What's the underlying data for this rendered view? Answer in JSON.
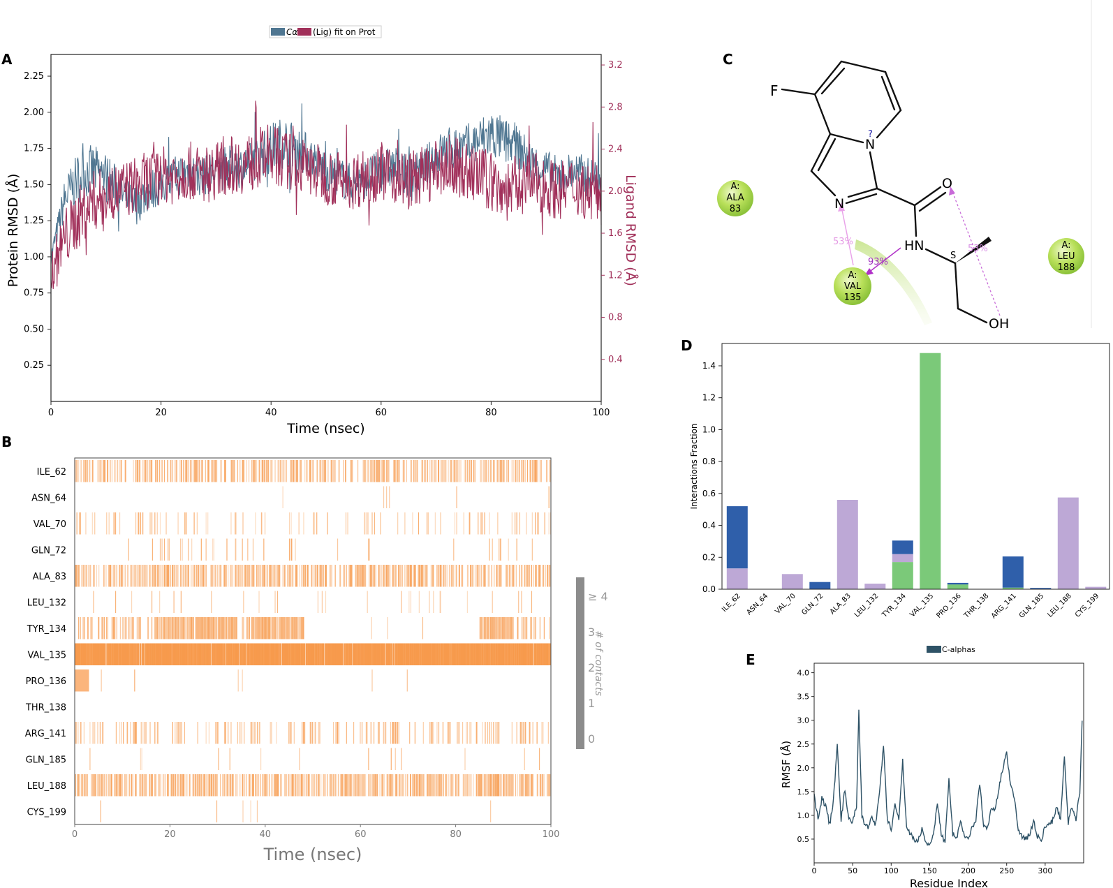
{
  "panels": {
    "A": "A",
    "B": "B",
    "C": "C",
    "D": "D",
    "E": "E"
  },
  "colors": {
    "protein": "#4f7691",
    "ligand": "#a1305a",
    "contact": "#f79a4c",
    "hbond": "#2f5faa",
    "hydrophobic": "#bda8d6",
    "water": "#7bc979",
    "rmsf": "#2e5266",
    "residue": "#a8d84a",
    "colorbar": "#8c8c8c"
  },
  "chart_data": [
    {
      "panel": "A",
      "type": "line",
      "legend": {
        "entries": [
          "Cα",
          "(Lig) fit on Prot"
        ],
        "placement": "top-center"
      },
      "xlabel": "Time (nsec)",
      "ylabel": "Protein RMSD (Å)",
      "y2label": "Ligand RMSD (Å)",
      "xlim": [
        0,
        100
      ],
      "ylim": [
        0,
        2.4
      ],
      "y2lim": [
        0,
        3.3
      ],
      "xticks": [
        0,
        20,
        40,
        60,
        80,
        100
      ],
      "yticks": [
        0.25,
        0.5,
        0.75,
        1.0,
        1.25,
        1.5,
        1.75,
        2.0,
        2.25
      ],
      "ytick_labels": [
        "0.25",
        "0.50",
        "0.75",
        "1.00",
        "1.25",
        "1.50",
        "1.75",
        "2.00",
        "2.25"
      ],
      "y2ticks": [
        0.4,
        0.8,
        1.2,
        1.6,
        2.0,
        2.4,
        2.8,
        3.2
      ],
      "y2tick_labels": [
        "0.4",
        "0.8",
        "1.2",
        "1.6",
        "2.0",
        "2.4",
        "2.8",
        "3.2"
      ],
      "series": [
        {
          "name": "Cα",
          "axis": "left",
          "x": [
            0,
            2.5,
            5,
            7.5,
            10,
            12.5,
            15,
            17.5,
            20,
            22.5,
            25,
            27.5,
            30,
            32.5,
            35,
            37.5,
            40,
            42.5,
            45,
            47.5,
            50,
            52.5,
            55,
            57.5,
            60,
            62.5,
            65,
            67.5,
            70,
            72.5,
            75,
            77.5,
            80,
            82.5,
            85,
            87.5,
            90,
            92.5,
            95,
            97.5,
            100
          ],
          "y": [
            1.0,
            1.4,
            1.55,
            1.6,
            1.55,
            1.45,
            1.35,
            1.45,
            1.5,
            1.55,
            1.6,
            1.55,
            1.6,
            1.62,
            1.62,
            1.68,
            1.75,
            1.8,
            1.75,
            1.68,
            1.6,
            1.55,
            1.5,
            1.55,
            1.6,
            1.62,
            1.55,
            1.6,
            1.7,
            1.75,
            1.75,
            1.8,
            1.85,
            1.8,
            1.75,
            1.65,
            1.6,
            1.55,
            1.6,
            1.55,
            1.55
          ],
          "spread": [
            0.05,
            0.15,
            0.18,
            0.18,
            0.18,
            0.15,
            0.15,
            0.15,
            0.14,
            0.15,
            0.15,
            0.14,
            0.15,
            0.15,
            0.15,
            0.15,
            0.18,
            0.18,
            0.16,
            0.15,
            0.15,
            0.14,
            0.14,
            0.14,
            0.15,
            0.15,
            0.14,
            0.15,
            0.15,
            0.16,
            0.16,
            0.16,
            0.18,
            0.16,
            0.15,
            0.14,
            0.14,
            0.14,
            0.14,
            0.14,
            0.14
          ]
        },
        {
          "name": "(Lig) fit on Prot",
          "axis": "right",
          "x": [
            0,
            2.5,
            5,
            7.5,
            10,
            12.5,
            15,
            17.5,
            20,
            22.5,
            25,
            27.5,
            30,
            32.5,
            35,
            37.5,
            40,
            42.5,
            45,
            47.5,
            50,
            52.5,
            55,
            57.5,
            60,
            62.5,
            65,
            67.5,
            70,
            72.5,
            75,
            77.5,
            80,
            82.5,
            85,
            87.5,
            90,
            92.5,
            95,
            97.5,
            100
          ],
          "y": [
            1.2,
            1.55,
            1.75,
            1.9,
            1.95,
            2.0,
            2.05,
            2.1,
            2.15,
            2.15,
            2.2,
            2.15,
            2.2,
            2.25,
            2.25,
            2.3,
            2.35,
            2.3,
            2.25,
            2.2,
            2.15,
            2.1,
            2.1,
            2.15,
            2.2,
            2.15,
            2.1,
            2.15,
            2.2,
            2.25,
            2.2,
            2.15,
            2.1,
            2.0,
            2.05,
            2.1,
            2.05,
            2.0,
            2.05,
            2.0,
            1.95
          ],
          "spread": [
            0.25,
            0.3,
            0.3,
            0.3,
            0.3,
            0.28,
            0.28,
            0.28,
            0.28,
            0.28,
            0.28,
            0.28,
            0.28,
            0.28,
            0.28,
            0.3,
            0.3,
            0.28,
            0.28,
            0.28,
            0.28,
            0.28,
            0.28,
            0.28,
            0.28,
            0.28,
            0.28,
            0.28,
            0.28,
            0.3,
            0.28,
            0.28,
            0.3,
            0.3,
            0.3,
            0.28,
            0.28,
            0.28,
            0.28,
            0.28,
            0.28
          ]
        }
      ]
    },
    {
      "panel": "B",
      "type": "heatmap",
      "xlabel": "Time (nsec)",
      "xlim": [
        0,
        100
      ],
      "xticks": [
        0,
        20,
        40,
        60,
        80,
        100
      ],
      "colorbar_label": "# of contacts",
      "colorbar_ticks": [
        "≥ 4",
        "3",
        "2",
        "1",
        "0"
      ],
      "rows": [
        {
          "residue": "ILE_62",
          "density": 0.45,
          "shade": 0.35,
          "gaps": []
        },
        {
          "residue": "ASN_64",
          "density": 0.004,
          "shade": 0.3,
          "gaps": [],
          "events": [
            64.8,
            65.4,
            66.0
          ]
        },
        {
          "residue": "VAL_70",
          "density": 0.1,
          "shade": 0.3,
          "gaps": []
        },
        {
          "residue": "GLN_72",
          "density": 0.08,
          "shade": 0.3,
          "gaps": [
            [
              0,
              17
            ],
            [
              48,
              86
            ]
          ]
        },
        {
          "residue": "ALA_83",
          "density": 0.5,
          "shade": 0.35,
          "gaps": []
        },
        {
          "residue": "LEU_132",
          "density": 0.04,
          "shade": 0.3,
          "gaps": []
        },
        {
          "residue": "TYR_134",
          "density": 0.3,
          "shade": 0.35,
          "gaps": [
            [
              45,
              85
            ]
          ],
          "dense": [
            [
              17,
              34
            ],
            [
              37,
              48
            ],
            [
              85,
              92
            ]
          ]
        },
        {
          "residue": "VAL_135",
          "density": 0.98,
          "shade": 0.85,
          "gaps": []
        },
        {
          "residue": "PRO_136",
          "density": 0.01,
          "shade": 0.3,
          "gaps": [],
          "block": [
            0,
            3
          ]
        },
        {
          "residue": "THR_138",
          "density": 0.01,
          "shade": 0.3,
          "gaps": [
            [
              12,
              100
            ]
          ]
        },
        {
          "residue": "ARG_141",
          "density": 0.22,
          "shade": 0.35,
          "gaps": []
        },
        {
          "residue": "GLN_185",
          "density": 0.01,
          "shade": 0.3,
          "gaps": []
        },
        {
          "residue": "LEU_188",
          "density": 0.55,
          "shade": 0.35,
          "gaps": []
        },
        {
          "residue": "CYS_199",
          "density": 0.01,
          "shade": 0.3,
          "gaps": []
        }
      ]
    },
    {
      "panel": "D",
      "type": "bar",
      "ylabel": "Interactions Fraction",
      "ylim": [
        0,
        1.54
      ],
      "yticks": [
        0.0,
        0.2,
        0.4,
        0.6,
        0.8,
        1.0,
        1.2,
        1.4
      ],
      "ytick_labels": [
        "0.0",
        "0.2",
        "0.4",
        "0.6",
        "0.8",
        "1.0",
        "1.2",
        "1.4"
      ],
      "categories": [
        "ILE_62",
        "ASN_64",
        "VAL_70",
        "GLN_72",
        "ALA_83",
        "LEU_132",
        "TYR_134",
        "VAL_135",
        "PRO_136",
        "THR_138",
        "ARG_141",
        "GLN_185",
        "LEU_188",
        "CYS_199"
      ],
      "stack_order_bottom_to_top": [
        "Water Bridges",
        "Hydrophobic",
        "H-bonds"
      ],
      "series": [
        {
          "name": "Water Bridges",
          "color": "#7bc979",
          "values": [
            0,
            0,
            0,
            0,
            0,
            0,
            0.17,
            1.48,
            0.03,
            0,
            0.01,
            0,
            0,
            0
          ]
        },
        {
          "name": "Hydrophobic",
          "color": "#bda8d6",
          "values": [
            0.13,
            0,
            0.095,
            0,
            0.56,
            0.035,
            0.05,
            0,
            0,
            0,
            0,
            0,
            0.575,
            0.015
          ]
        },
        {
          "name": "H-bonds",
          "color": "#2f5faa",
          "values": [
            0.39,
            0,
            0,
            0.045,
            0,
            0,
            0.085,
            0,
            0.01,
            0,
            0.195,
            0.008,
            0,
            0
          ]
        }
      ]
    },
    {
      "panel": "E",
      "type": "line",
      "legend": {
        "entries": [
          "C-alphas"
        ],
        "placement": "top-center"
      },
      "xlabel": "Residue Index",
      "ylabel": "RMSF (Å)",
      "xlim": [
        0,
        350
      ],
      "ylim": [
        0,
        4.2
      ],
      "xticks": [
        0,
        50,
        100,
        150,
        200,
        250,
        300
      ],
      "yticks": [
        0.5,
        1.0,
        1.5,
        2.0,
        2.5,
        3.0,
        3.5,
        4.0
      ],
      "ytick_labels": [
        "0.5",
        "1.0",
        "1.5",
        "2.0",
        "2.5",
        "3.0",
        "3.5",
        "4.0"
      ],
      "series": [
        {
          "name": "C-alphas",
          "x": [
            0,
            5,
            10,
            15,
            20,
            25,
            30,
            35,
            40,
            45,
            50,
            55,
            58,
            62,
            66,
            70,
            75,
            80,
            85,
            90,
            95,
            100,
            105,
            110,
            115,
            120,
            125,
            130,
            135,
            140,
            145,
            150,
            155,
            160,
            165,
            170,
            175,
            180,
            185,
            190,
            195,
            200,
            205,
            210,
            215,
            220,
            225,
            230,
            235,
            240,
            245,
            250,
            255,
            260,
            265,
            270,
            275,
            280,
            285,
            290,
            295,
            300,
            305,
            310,
            315,
            320,
            325,
            330,
            335,
            340,
            345,
            348
          ],
          "y": [
            1.4,
            0.95,
            1.35,
            1.2,
            0.8,
            1.3,
            2.5,
            0.9,
            1.55,
            0.9,
            0.85,
            1.2,
            3.25,
            1.0,
            0.8,
            0.75,
            1.0,
            0.8,
            1.5,
            2.45,
            0.9,
            0.7,
            1.2,
            0.9,
            2.15,
            0.75,
            0.6,
            0.5,
            0.45,
            0.7,
            0.45,
            0.4,
            0.55,
            1.3,
            0.6,
            0.45,
            1.75,
            0.6,
            0.5,
            0.85,
            0.6,
            0.45,
            0.75,
            0.9,
            1.7,
            0.8,
            0.7,
            1.2,
            1.1,
            1.6,
            2.0,
            2.35,
            1.6,
            1.4,
            0.7,
            0.55,
            0.5,
            0.6,
            0.9,
            0.55,
            0.5,
            0.75,
            0.8,
            0.9,
            1.2,
            0.9,
            2.25,
            0.85,
            1.2,
            0.9,
            1.5,
            2.95
          ]
        }
      ]
    }
  ],
  "ligand": {
    "atoms": {
      "F": "F",
      "N_pyridine": "N",
      "N_imidazole": "N",
      "O_carbonyl": "O",
      "NH": "HN",
      "OH": "OH",
      "stereo": "S",
      "question": "?"
    },
    "residues": [
      {
        "lines": [
          "A:",
          "ALA",
          "83"
        ]
      },
      {
        "lines": [
          "A:",
          "VAL",
          "135"
        ]
      },
      {
        "lines": [
          "A:",
          "LEU",
          "188"
        ]
      }
    ],
    "interactions": [
      {
        "label": "53%"
      },
      {
        "label": "93%"
      },
      {
        "label": "53%"
      }
    ]
  }
}
